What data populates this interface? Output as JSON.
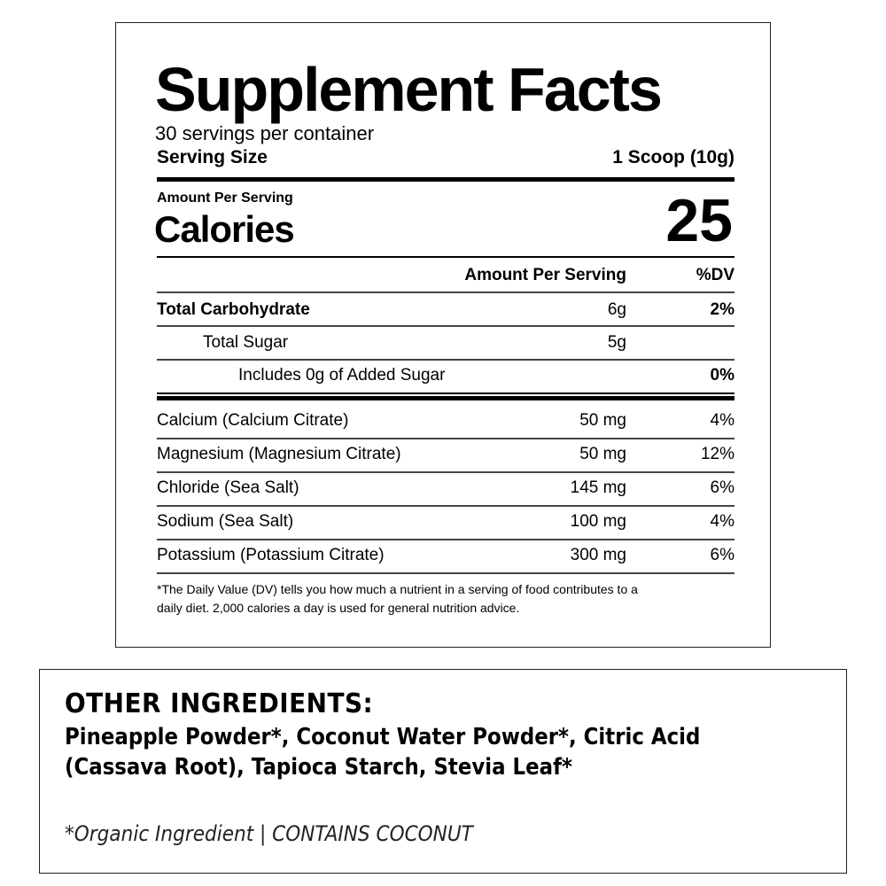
{
  "facts": {
    "title": "Supplement Facts",
    "servings_per_container": "30 servings per container",
    "serving_size_label": "Serving Size",
    "serving_size_value": "1 Scoop (10g)",
    "amount_per_serving": "Amount Per Serving",
    "calories_label": "Calories",
    "calories_value": "25",
    "header": {
      "amount": "Amount Per Serving",
      "dv": "%DV"
    },
    "macros": [
      {
        "name": "Total Carbohydrate",
        "amount": "6g",
        "dv": "2%"
      },
      {
        "name": "Total Sugar",
        "amount": "5g",
        "dv": ""
      },
      {
        "name": "Includes 0g of Added Sugar",
        "amount": "",
        "dv": "0%"
      }
    ],
    "minerals": [
      {
        "name": "Calcium (Calcium Citrate)",
        "amount": "50 mg",
        "dv": "4%"
      },
      {
        "name": "Magnesium (Magnesium Citrate)",
        "amount": "50 mg",
        "dv": "12%"
      },
      {
        "name": "Chloride (Sea Salt)",
        "amount": "145 mg",
        "dv": "6%"
      },
      {
        "name": "Sodium (Sea Salt)",
        "amount": "100 mg",
        "dv": "4%"
      },
      {
        "name": "Potassium (Potassium Citrate)",
        "amount": "300 mg",
        "dv": "6%"
      }
    ],
    "footnote_1": "*The Daily Value (DV) tells you how much a nutrient in a serving of food contributes to a",
    "footnote_2": "daily diet. 2,000 calories a day is used for general nutrition advice."
  },
  "ingredients": {
    "heading": "OTHER INGREDIENTS:",
    "line_1": "Pineapple Powder*, Coconut Water Powder*, Citric Acid",
    "line_2": "(Cassava Root), Tapioca Starch, Stevia Leaf*",
    "note": "*Organic Ingredient | CONTAINS COCONUT"
  }
}
